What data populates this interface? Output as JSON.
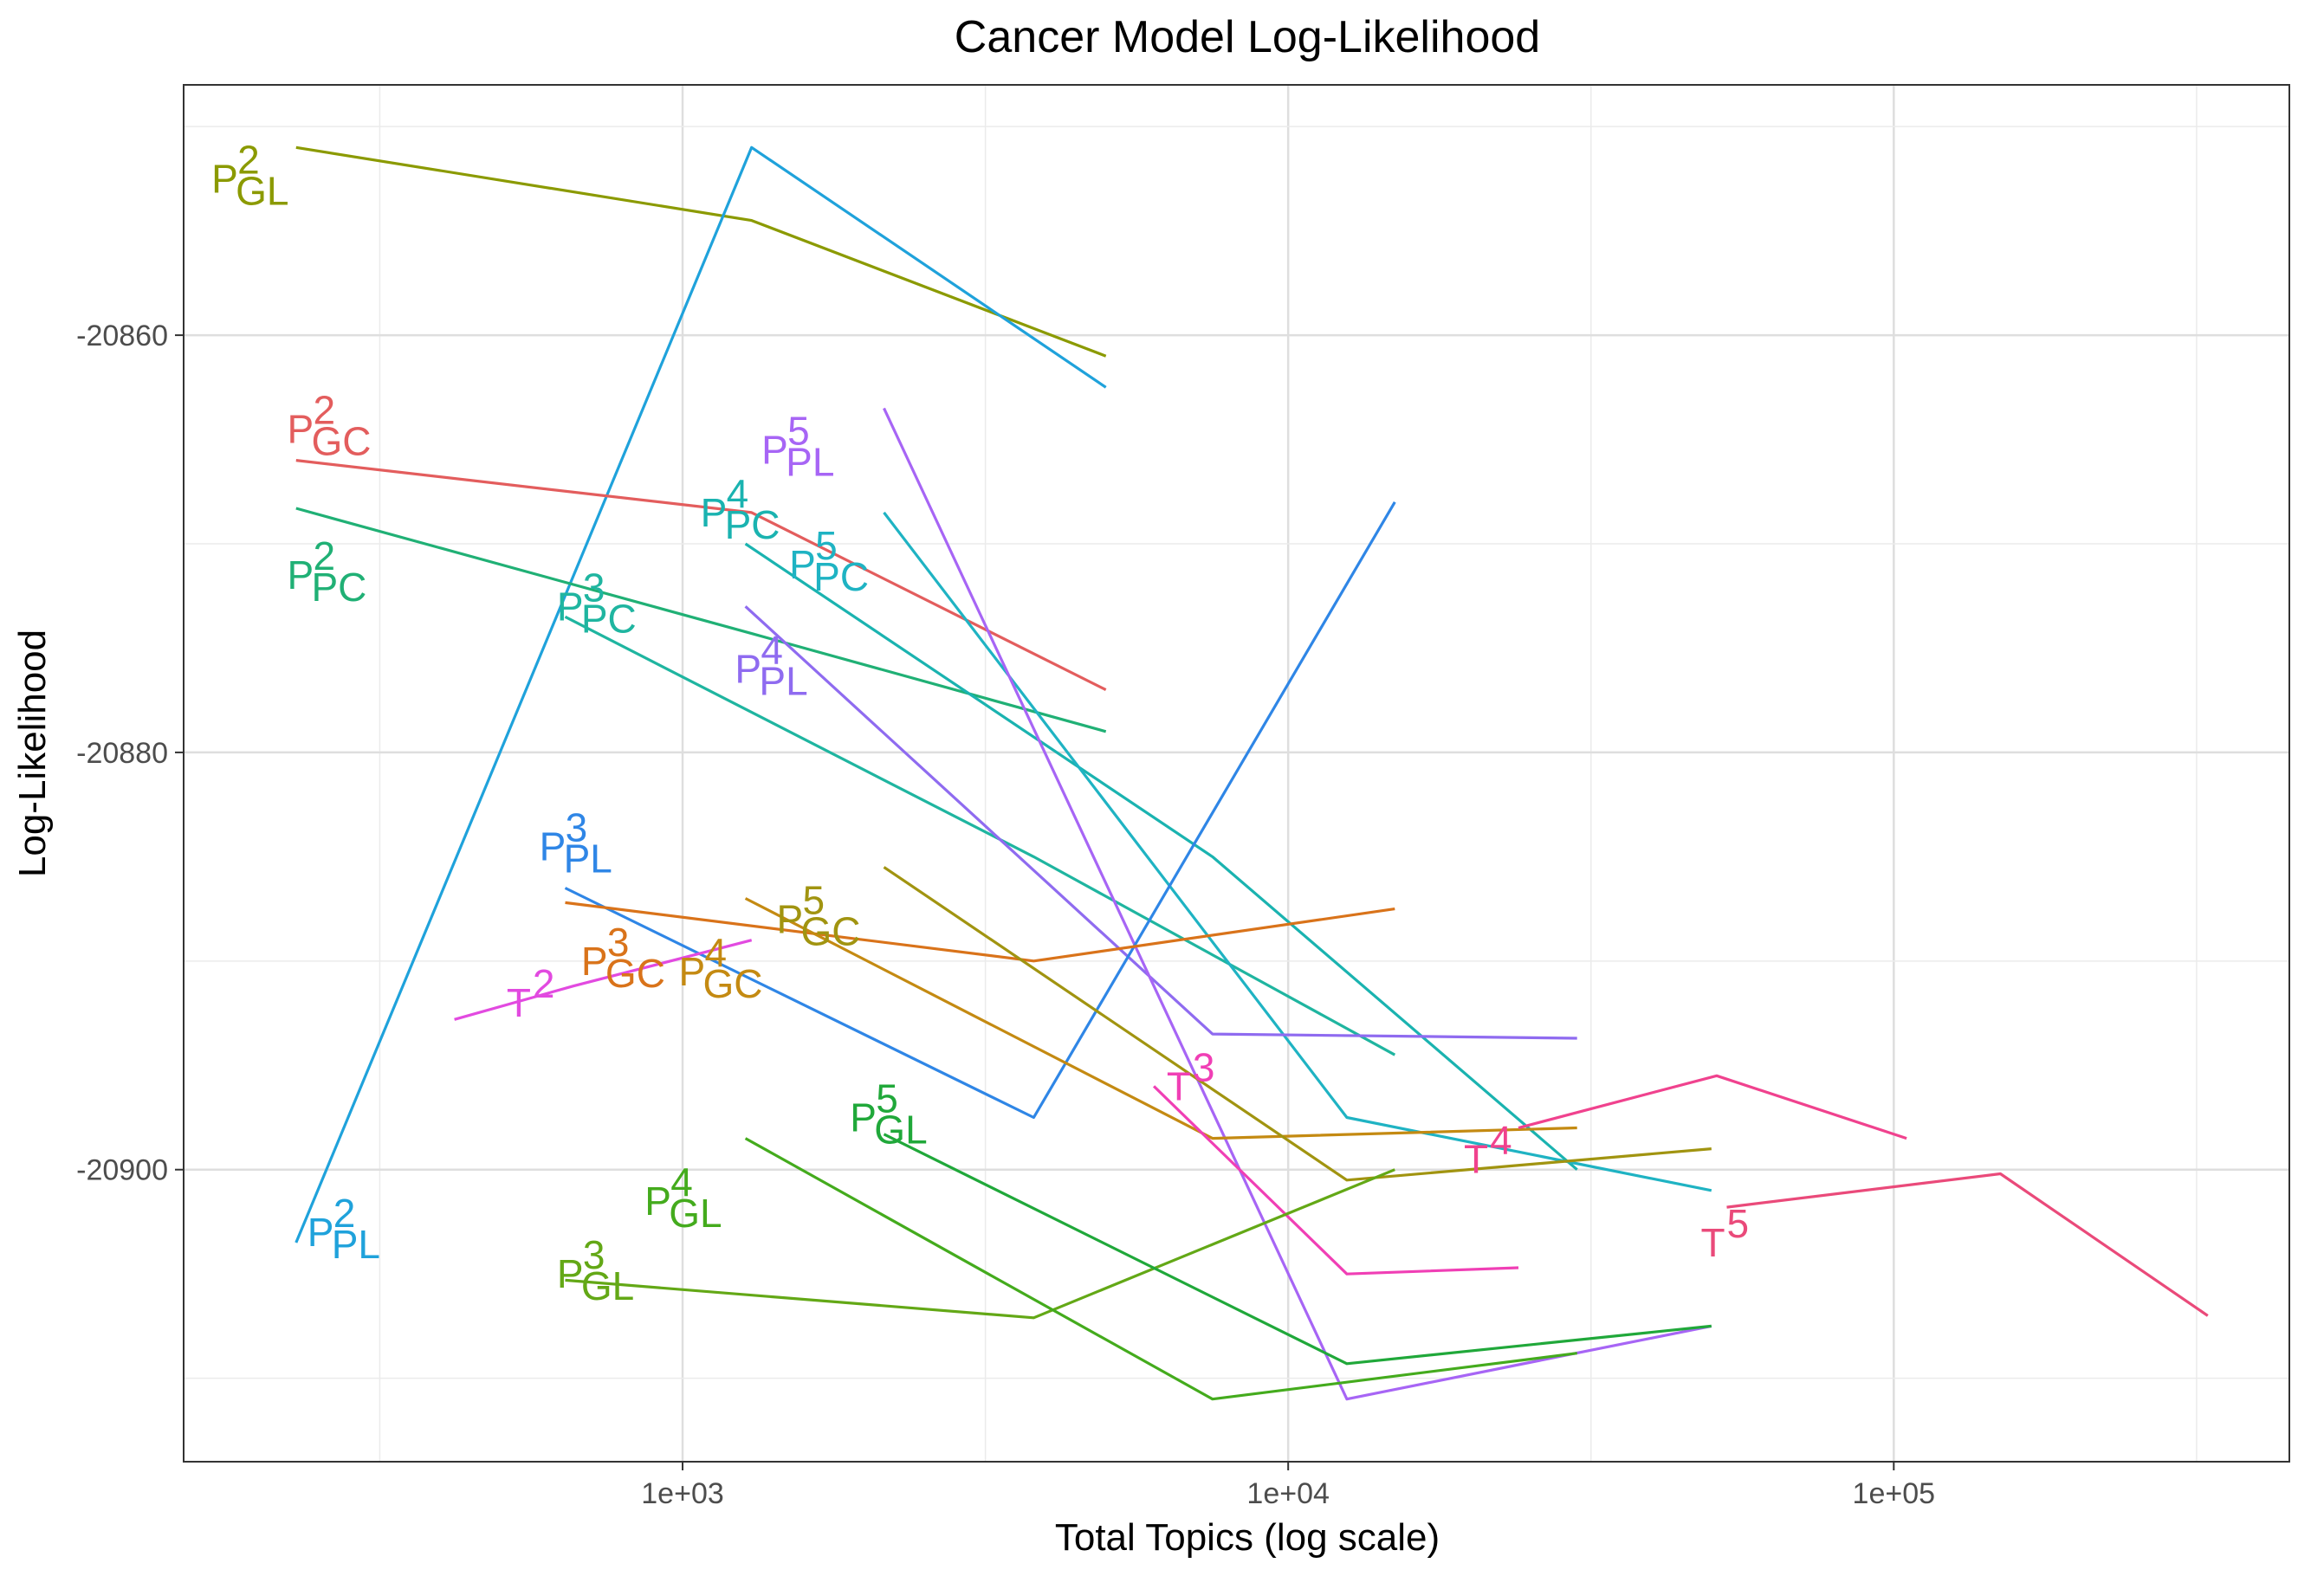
{
  "chart_data": {
    "type": "line",
    "title": "Cancer Model Log-Likelihood",
    "xlabel": "Total Topics (log scale)",
    "ylabel": "Log-Likelihood",
    "xscale": "log",
    "xlim": [
      150,
      450000
    ],
    "ylim": [
      -20914,
      -20848
    ],
    "x_ticks": [
      {
        "value": 1000,
        "label": "1e+03"
      },
      {
        "value": 10000,
        "label": "1e+04"
      },
      {
        "value": 100000,
        "label": "1e+05"
      }
    ],
    "y_ticks": [
      {
        "value": -20860,
        "label": "-20860"
      },
      {
        "value": -20880,
        "label": "-20880"
      },
      {
        "value": -20900,
        "label": "-20900"
      }
    ],
    "grid": true,
    "legend": "none",
    "series": [
      {
        "name": "P",
        "sup": "2",
        "sub": "GL",
        "color": "#8b9a00",
        "x": [
          230,
          1300,
          5000
        ],
        "y": [
          -20851.0,
          -20854.5,
          -20861.0
        ],
        "label": {
          "x": 210,
          "y": -20852.5,
          "anchor": "end"
        }
      },
      {
        "name": "P",
        "sup": "2",
        "sub": "PL",
        "color": "#1fa2db",
        "x": [
          230,
          1300,
          5000
        ],
        "y": [
          -20903.5,
          -20851.0,
          -20862.5
        ],
        "label": {
          "x": 240,
          "y": -20903.0,
          "anchor": "start"
        }
      },
      {
        "name": "P",
        "sup": "2",
        "sub": "GC",
        "color": "#e35d5d",
        "x": [
          230,
          1300,
          5000
        ],
        "y": [
          -20866.0,
          -20868.5,
          -20877.0
        ],
        "label": {
          "x": 280,
          "y": -20864.5,
          "anchor": "end"
        }
      },
      {
        "name": "P",
        "sup": "2",
        "sub": "PC",
        "color": "#20b075",
        "x": [
          230,
          1300,
          5000
        ],
        "y": [
          -20868.3,
          -20874.3,
          -20879.0
        ],
        "label": {
          "x": 280,
          "y": -20871.5,
          "anchor": "end"
        }
      },
      {
        "name": "P",
        "sup": "3",
        "sub": "PC",
        "color": "#1fb5a0",
        "x": [
          640,
          3800,
          15000
        ],
        "y": [
          -20873.5,
          -20885.0,
          -20894.5
        ],
        "label": {
          "x": 620,
          "y": -20873.0,
          "anchor": "start"
        }
      },
      {
        "name": "P",
        "sup": "4",
        "sub": "PC",
        "color": "#1ab3b0",
        "x": [
          1270,
          7500,
          30000
        ],
        "y": [
          -20870.0,
          -20885.0,
          -20900.0
        ],
        "label": {
          "x": 1070,
          "y": -20868.5,
          "anchor": "start"
        }
      },
      {
        "name": "P",
        "sup": "5",
        "sub": "PC",
        "color": "#1fb3c3",
        "x": [
          2150,
          12500,
          50000
        ],
        "y": [
          -20868.5,
          -20897.5,
          -20901.0
        ],
        "label": {
          "x": 1500,
          "y": -20871.0,
          "anchor": "start"
        }
      },
      {
        "name": "P",
        "sup": "4",
        "sub": "PL",
        "color": "#8f6bf0",
        "x": [
          1270,
          7500,
          30000
        ],
        "y": [
          -20873.0,
          -20893.5,
          -20893.7
        ],
        "label": {
          "x": 1220,
          "y": -20876.0,
          "anchor": "start"
        }
      },
      {
        "name": "P",
        "sup": "5",
        "sub": "PL",
        "color": "#a765f5",
        "x": [
          2150,
          12500,
          50000
        ],
        "y": [
          -20863.5,
          -20911.0,
          -20907.5
        ],
        "label": {
          "x": 1700,
          "y": -20865.5,
          "anchor": "end"
        }
      },
      {
        "name": "P",
        "sup": "3",
        "sub": "PL",
        "color": "#2f86e6",
        "x": [
          640,
          3800,
          15000
        ],
        "y": [
          -20886.5,
          -20897.5,
          -20868.0
        ],
        "label": {
          "x": 580,
          "y": -20884.5,
          "anchor": "start"
        }
      },
      {
        "name": "P",
        "sup": "3",
        "sub": "GC",
        "color": "#d9731a",
        "x": [
          640,
          3800,
          15000
        ],
        "y": [
          -20887.2,
          -20890.0,
          -20887.5
        ],
        "label": {
          "x": 680,
          "y": -20890.0,
          "anchor": "start"
        }
      },
      {
        "name": "P",
        "sup": "4",
        "sub": "GC",
        "color": "#c48a12",
        "x": [
          1270,
          7500,
          30000
        ],
        "y": [
          -20887.0,
          -20898.5,
          -20898.0
        ],
        "label": {
          "x": 985,
          "y": -20890.5,
          "anchor": "start"
        }
      },
      {
        "name": "P",
        "sup": "5",
        "sub": "GC",
        "color": "#a19410",
        "x": [
          2150,
          12500,
          50000
        ],
        "y": [
          -20885.5,
          -20900.5,
          -20899.0
        ],
        "label": {
          "x": 1800,
          "y": -20888.0,
          "anchor": "end"
        }
      },
      {
        "name": "T",
        "sup": "2",
        "sub": "",
        "color": "#e24ae0",
        "x": [
          420,
          660,
          1300
        ],
        "y": [
          -20892.8,
          -20891.2,
          -20889.0
        ],
        "label": {
          "x": 600,
          "y": -20892.0,
          "anchor": "end"
        }
      },
      {
        "name": "T",
        "sup": "3",
        "sub": "",
        "color": "#f03fb5",
        "x": [
          6000,
          12500,
          24000
        ],
        "y": [
          -20896.0,
          -20905.0,
          -20904.7
        ],
        "label": {
          "x": 6300,
          "y": -20896.0,
          "anchor": "start"
        }
      },
      {
        "name": "T",
        "sup": "4",
        "sub": "",
        "color": "#f0428e",
        "x": [
          24000,
          51000,
          105000
        ],
        "y": [
          -20898.0,
          -20895.5,
          -20898.5
        ],
        "label": {
          "x": 19500,
          "y": -20899.5,
          "anchor": "start"
        }
      },
      {
        "name": "T",
        "sup": "5",
        "sub": "",
        "color": "#ea4a7a",
        "x": [
          53000,
          150000,
          330000
        ],
        "y": [
          -20901.8,
          -20900.2,
          -20907.0
        ],
        "label": {
          "x": 48000,
          "y": -20903.5,
          "anchor": "start"
        }
      },
      {
        "name": "P",
        "sup": "3",
        "sub": "GL",
        "color": "#63a816",
        "x": [
          640,
          3800,
          15000
        ],
        "y": [
          -20905.3,
          -20907.1,
          -20900.0
        ],
        "label": {
          "x": 620,
          "y": -20905.0,
          "anchor": "start"
        }
      },
      {
        "name": "P",
        "sup": "4",
        "sub": "GL",
        "color": "#44ab1d",
        "x": [
          1270,
          7500,
          30000
        ],
        "y": [
          -20898.5,
          -20911.0,
          -20908.8
        ],
        "label": {
          "x": 1090,
          "y": -20901.5,
          "anchor": "end"
        }
      },
      {
        "name": "P",
        "sup": "5",
        "sub": "GL",
        "color": "#20a83a",
        "x": [
          2150,
          12500,
          50000
        ],
        "y": [
          -20898.3,
          -20909.3,
          -20907.5
        ],
        "label": {
          "x": 2380,
          "y": -20897.5,
          "anchor": "end"
        }
      }
    ]
  }
}
